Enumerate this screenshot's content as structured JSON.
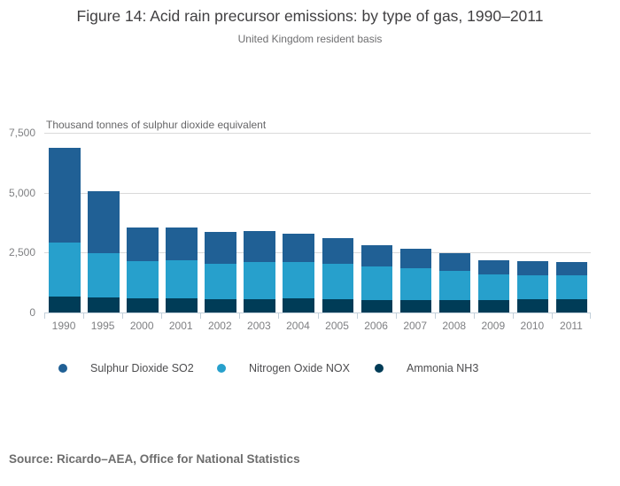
{
  "title": "Figure 14: Acid rain precursor emissions: by type of gas, 1990–2011",
  "subtitle": "United Kingdom resident basis",
  "unit_label": "Thousand tonnes of sulphur dioxide equivalent",
  "source": "Source: Ricardo–AEA, Office for National Statistics",
  "colors": {
    "so2": "#206095",
    "nox": "#27a0cc",
    "nh3": "#003c57",
    "gridline": "#d9d9d9",
    "axis": "#c3d0da",
    "title_text": "#414042",
    "muted_text": "#7f8083"
  },
  "y_axis": {
    "ticks": [
      {
        "label": "7,500",
        "value": 7500
      },
      {
        "label": "5,000",
        "value": 5000
      },
      {
        "label": "2,500",
        "value": 2500
      },
      {
        "label": "0",
        "value": 0
      }
    ]
  },
  "legend": [
    {
      "key": "so2",
      "label": "Sulphur Dioxide SO2",
      "color": "#206095"
    },
    {
      "key": "nox",
      "label": "Nitrogen Oxide NOX",
      "color": "#27a0cc"
    },
    {
      "key": "nh3",
      "label": "Ammonia NH3",
      "color": "#003c57"
    }
  ],
  "chart_data": {
    "type": "bar",
    "stacked": true,
    "title": "Figure 14: Acid rain precursor emissions: by type of gas, 1990–2011",
    "subtitle": "United Kingdom resident basis",
    "ylabel": "Thousand tonnes of sulphur dioxide equivalent",
    "ylim": [
      0,
      7500
    ],
    "grid": true,
    "legend_position": "bottom",
    "categories": [
      "1990",
      "1995",
      "2000",
      "2001",
      "2002",
      "2003",
      "2004",
      "2005",
      "2006",
      "2007",
      "2008",
      "2009",
      "2010",
      "2011"
    ],
    "series": [
      {
        "key": "so2",
        "name": "Sulphur Dioxide SO2",
        "color": "#206095",
        "stack_position": "top",
        "values": [
          3940,
          2575,
          1390,
          1360,
          1315,
          1305,
          1190,
          1070,
          900,
          810,
          765,
          560,
          590,
          545
        ]
      },
      {
        "key": "nox",
        "name": "Nitrogen Oxide NOX",
        "color": "#27a0cc",
        "stack_position": "middle",
        "values": [
          2255,
          1855,
          1540,
          1580,
          1475,
          1540,
          1505,
          1490,
          1390,
          1330,
          1195,
          1075,
          1020,
          1020
        ]
      },
      {
        "key": "nh3",
        "name": "Ammonia NH3",
        "color": "#003c57",
        "stack_position": "bottom",
        "values": [
          665,
          630,
          600,
          600,
          570,
          555,
          590,
          555,
          520,
          530,
          530,
          530,
          545,
          545
        ]
      }
    ]
  }
}
